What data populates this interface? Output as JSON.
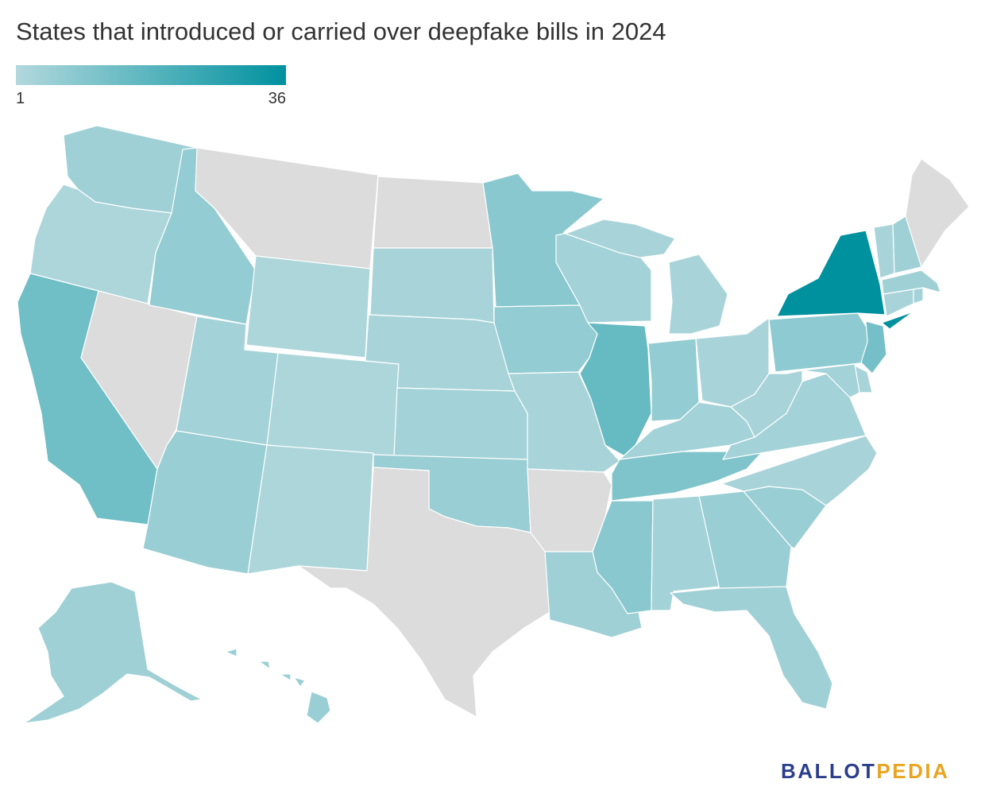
{
  "header": {
    "title": "States that introduced or carried over deepfake bills in 2024"
  },
  "legend": {
    "min_label": "1",
    "max_label": "36",
    "min_color": "#b2d8dd",
    "max_color": "#00919f",
    "no_data_color": "#dcdcdc"
  },
  "brand": {
    "part1": "BALLOT",
    "part2": "PEDIA",
    "color1": "#2b3e8c",
    "color2": "#e9a420"
  },
  "map_data": {
    "type": "choropleth",
    "value_range": [
      1,
      36
    ],
    "states": [
      {
        "abbr": "WA",
        "value": 5
      },
      {
        "abbr": "OR",
        "value": 2
      },
      {
        "abbr": "CA",
        "value": 14
      },
      {
        "abbr": "NV",
        "value": null
      },
      {
        "abbr": "ID",
        "value": 7
      },
      {
        "abbr": "MT",
        "value": null
      },
      {
        "abbr": "WY",
        "value": 2
      },
      {
        "abbr": "UT",
        "value": 4
      },
      {
        "abbr": "AZ",
        "value": 6
      },
      {
        "abbr": "CO",
        "value": 2
      },
      {
        "abbr": "NM",
        "value": 2
      },
      {
        "abbr": "ND",
        "value": null
      },
      {
        "abbr": "SD",
        "value": 3
      },
      {
        "abbr": "NE",
        "value": 3
      },
      {
        "abbr": "KS",
        "value": 4
      },
      {
        "abbr": "OK",
        "value": 6
      },
      {
        "abbr": "TX",
        "value": null
      },
      {
        "abbr": "MN",
        "value": 9
      },
      {
        "abbr": "IA",
        "value": 7
      },
      {
        "abbr": "MO",
        "value": 3
      },
      {
        "abbr": "AR",
        "value": null
      },
      {
        "abbr": "LA",
        "value": 5
      },
      {
        "abbr": "WI",
        "value": 4
      },
      {
        "abbr": "IL",
        "value": 16
      },
      {
        "abbr": "MI",
        "value": 3
      },
      {
        "abbr": "IN",
        "value": 7
      },
      {
        "abbr": "OH",
        "value": 3
      },
      {
        "abbr": "KY",
        "value": 4
      },
      {
        "abbr": "TN",
        "value": 11
      },
      {
        "abbr": "MS",
        "value": 9
      },
      {
        "abbr": "AL",
        "value": 4
      },
      {
        "abbr": "GA",
        "value": 6
      },
      {
        "abbr": "FL",
        "value": 5
      },
      {
        "abbr": "SC",
        "value": 6
      },
      {
        "abbr": "NC",
        "value": 3
      },
      {
        "abbr": "VA",
        "value": 4
      },
      {
        "abbr": "WV",
        "value": 3
      },
      {
        "abbr": "PA",
        "value": 8
      },
      {
        "abbr": "NY",
        "value": 36
      },
      {
        "abbr": "NJ",
        "value": 13
      },
      {
        "abbr": "DE",
        "value": 3
      },
      {
        "abbr": "MD",
        "value": 4
      },
      {
        "abbr": "CT",
        "value": 3
      },
      {
        "abbr": "RI",
        "value": 4
      },
      {
        "abbr": "MA",
        "value": 5
      },
      {
        "abbr": "VT",
        "value": 3
      },
      {
        "abbr": "NH",
        "value": 5
      },
      {
        "abbr": "ME",
        "value": null
      },
      {
        "abbr": "AK",
        "value": 5
      },
      {
        "abbr": "HI",
        "value": 6
      }
    ]
  }
}
